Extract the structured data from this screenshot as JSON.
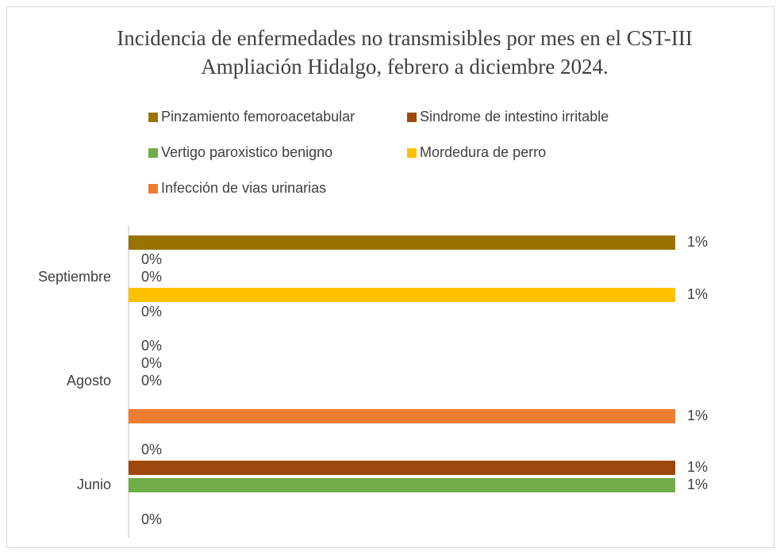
{
  "chart_data": {
    "type": "bar",
    "orientation": "horizontal",
    "title": "Incidencia de enfermedades no transmisibles por mes en el CST-III Ampliación Hidalgo, febrero a diciembre 2024.",
    "categories": [
      "Junio",
      "Agosto",
      "Septiembre"
    ],
    "series": [
      {
        "name": "Pinzamiento femoroacetabular",
        "color": "#997300",
        "values": [
          0,
          0,
          1
        ],
        "value_labels": [
          "0%",
          "0%",
          "1%"
        ]
      },
      {
        "name": "Sindrome de intestino irritable",
        "color": "#9e480e",
        "values": [
          1,
          0,
          0
        ],
        "value_labels": [
          "1%",
          "0%",
          "0%"
        ]
      },
      {
        "name": "Vertigo paroxistico benigno",
        "color": "#70ad47",
        "values": [
          1,
          0,
          0
        ],
        "value_labels": [
          "1%",
          "0%",
          "0%"
        ]
      },
      {
        "name": "Mordedura de perro",
        "color": "#ffc000",
        "values": [
          null,
          null,
          1
        ],
        "value_labels": [
          null,
          null,
          "1%"
        ]
      },
      {
        "name": "Infección de vias urinarias",
        "color": "#ed7d31",
        "values": [
          0,
          1,
          0
        ],
        "value_labels": [
          "0%",
          "1%",
          "0%"
        ]
      }
    ]
  }
}
